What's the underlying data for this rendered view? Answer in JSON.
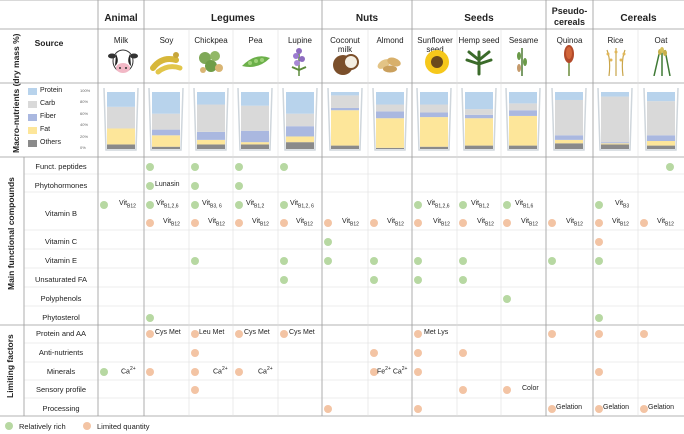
{
  "corner_label": "Source",
  "groups": [
    {
      "name": "Animal",
      "sources": [
        "Milk"
      ]
    },
    {
      "name": "Legumes",
      "sources": [
        "Soy",
        "Chickpea",
        "Pea",
        "Lupine"
      ]
    },
    {
      "name": "Nuts",
      "sources": [
        "Coconut milk",
        "Almond"
      ]
    },
    {
      "name": "Seeds",
      "sources": [
        "Sunflower seed",
        "Hemp seed",
        "Sesame"
      ]
    },
    {
      "name": "Pseudo-cereals",
      "sources": [
        "Quinoa"
      ]
    },
    {
      "name": "Cereals",
      "sources": [
        "Rice",
        "Oat"
      ]
    }
  ],
  "macro": {
    "title": "Macro-nutrients (dry mass %)",
    "legend": [
      "Protein",
      "Carb",
      "Fiber",
      "Fat",
      "Others"
    ],
    "colors": {
      "Protein": "#b8d3ec",
      "Carb": "#d9d9d9",
      "Fiber": "#aab8e0",
      "Fat": "#fde69a",
      "Others": "#8a8a8a"
    },
    "axis_ticks": [
      "100%",
      "80%",
      "60%",
      "40%",
      "20%",
      "0%"
    ],
    "composition": [
      {
        "source": "Milk",
        "Protein": 26,
        "Carb": 38,
        "Fiber": 0,
        "Fat": 28,
        "Others": 8
      },
      {
        "source": "Soy",
        "Protein": 38,
        "Carb": 28,
        "Fiber": 10,
        "Fat": 20,
        "Others": 4
      },
      {
        "source": "Chickpea",
        "Protein": 22,
        "Carb": 48,
        "Fiber": 14,
        "Fat": 8,
        "Others": 8
      },
      {
        "source": "Pea",
        "Protein": 24,
        "Carb": 44,
        "Fiber": 20,
        "Fat": 4,
        "Others": 8
      },
      {
        "source": "Lupine",
        "Protein": 38,
        "Carb": 22,
        "Fiber": 18,
        "Fat": 10,
        "Others": 12
      },
      {
        "source": "Coconut milk",
        "Protein": 6,
        "Carb": 22,
        "Fiber": 4,
        "Fat": 62,
        "Others": 6
      },
      {
        "source": "Almond",
        "Protein": 22,
        "Carb": 12,
        "Fiber": 12,
        "Fat": 52,
        "Others": 2
      },
      {
        "source": "Sunflower seed",
        "Protein": 22,
        "Carb": 14,
        "Fiber": 8,
        "Fat": 52,
        "Others": 4
      },
      {
        "source": "Hemp seed",
        "Protein": 30,
        "Carb": 10,
        "Fiber": 6,
        "Fat": 48,
        "Others": 6
      },
      {
        "source": "Sesame",
        "Protein": 20,
        "Carb": 12,
        "Fiber": 10,
        "Fat": 52,
        "Others": 6
      },
      {
        "source": "Quinoa",
        "Protein": 14,
        "Carb": 62,
        "Fiber": 8,
        "Fat": 6,
        "Others": 10
      },
      {
        "source": "Rice",
        "Protein": 8,
        "Carb": 80,
        "Fiber": 2,
        "Fat": 2,
        "Others": 8
      },
      {
        "source": "Oat",
        "Protein": 16,
        "Carb": 60,
        "Fiber": 10,
        "Fat": 8,
        "Others": 6
      }
    ]
  },
  "functional": {
    "title": "Main functional compounds",
    "rows": [
      "Funct. peptides",
      "Phytohormones",
      "Vitamin B",
      "Vitamin C",
      "Vitamin E",
      "Unsaturated FA",
      "Polyphenols",
      "Phytosterol"
    ]
  },
  "limiting": {
    "title": "Limiting factors",
    "rows": [
      "Protein and AA",
      "Anti-nutrients",
      "Minerals",
      "Sensory profile",
      "Processing"
    ]
  },
  "annotations": {
    "lunasin": "Lunasin",
    "vit": "Vit",
    "b12": "B12",
    "b126": "B1,2,6",
    "b36": "B3, 6",
    "b12b": "B1,2",
    "b126b": "B1,2, 6",
    "b16": "B1,6",
    "b3": "B3",
    "cys_met": "Cys Met",
    "leu_met": "Leu Met",
    "met_lys": "Met Lys",
    "ca": "Ca",
    "fe": "Fe",
    "plus2": "2+",
    "color": "Color",
    "gelation": "Gelation"
  },
  "legend_bottom": {
    "rich": "Relatively rich",
    "limited": "Limited quantity"
  },
  "marker_colors": {
    "rich": "#b7d8a2",
    "limited": "#f3c4a4"
  }
}
